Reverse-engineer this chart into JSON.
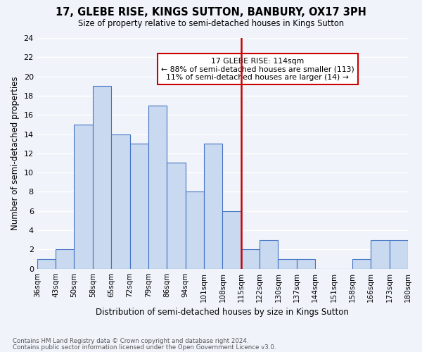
{
  "title": "17, GLEBE RISE, KINGS SUTTON, BANBURY, OX17 3PH",
  "subtitle": "Size of property relative to semi-detached houses in Kings Sutton",
  "xlabel": "Distribution of semi-detached houses by size in Kings Sutton",
  "ylabel": "Number of semi-detached properties",
  "footnote1": "Contains HM Land Registry data © Crown copyright and database right 2024.",
  "footnote2": "Contains public sector information licensed under the Open Government Licence v3.0.",
  "bin_labels": [
    "36sqm",
    "43sqm",
    "50sqm",
    "58sqm",
    "65sqm",
    "72sqm",
    "79sqm",
    "86sqm",
    "94sqm",
    "101sqm",
    "108sqm",
    "115sqm",
    "122sqm",
    "130sqm",
    "137sqm",
    "144sqm",
    "151sqm",
    "158sqm",
    "166sqm",
    "173sqm",
    "180sqm"
  ],
  "bar_heights": [
    1,
    2,
    15,
    19,
    14,
    13,
    17,
    11,
    8,
    13,
    6,
    2,
    3,
    1,
    1,
    0,
    0,
    1,
    3,
    3
  ],
  "bar_color": "#c8d9f0",
  "bar_edge_color": "#4472c4",
  "highlight_bin_index": 11,
  "highlight_line_color": "#cc0000",
  "ylim": [
    0,
    24
  ],
  "yticks": [
    0,
    2,
    4,
    6,
    8,
    10,
    12,
    14,
    16,
    18,
    20,
    22,
    24
  ],
  "annotation_title": "17 GLEBE RISE: 114sqm",
  "annotation_line1": "← 88% of semi-detached houses are smaller (113)",
  "annotation_line2": "11% of semi-detached houses are larger (14) →",
  "annotation_box_color": "#ffffff",
  "annotation_box_edge": "#cc0000",
  "background_color": "#f0f4fa"
}
